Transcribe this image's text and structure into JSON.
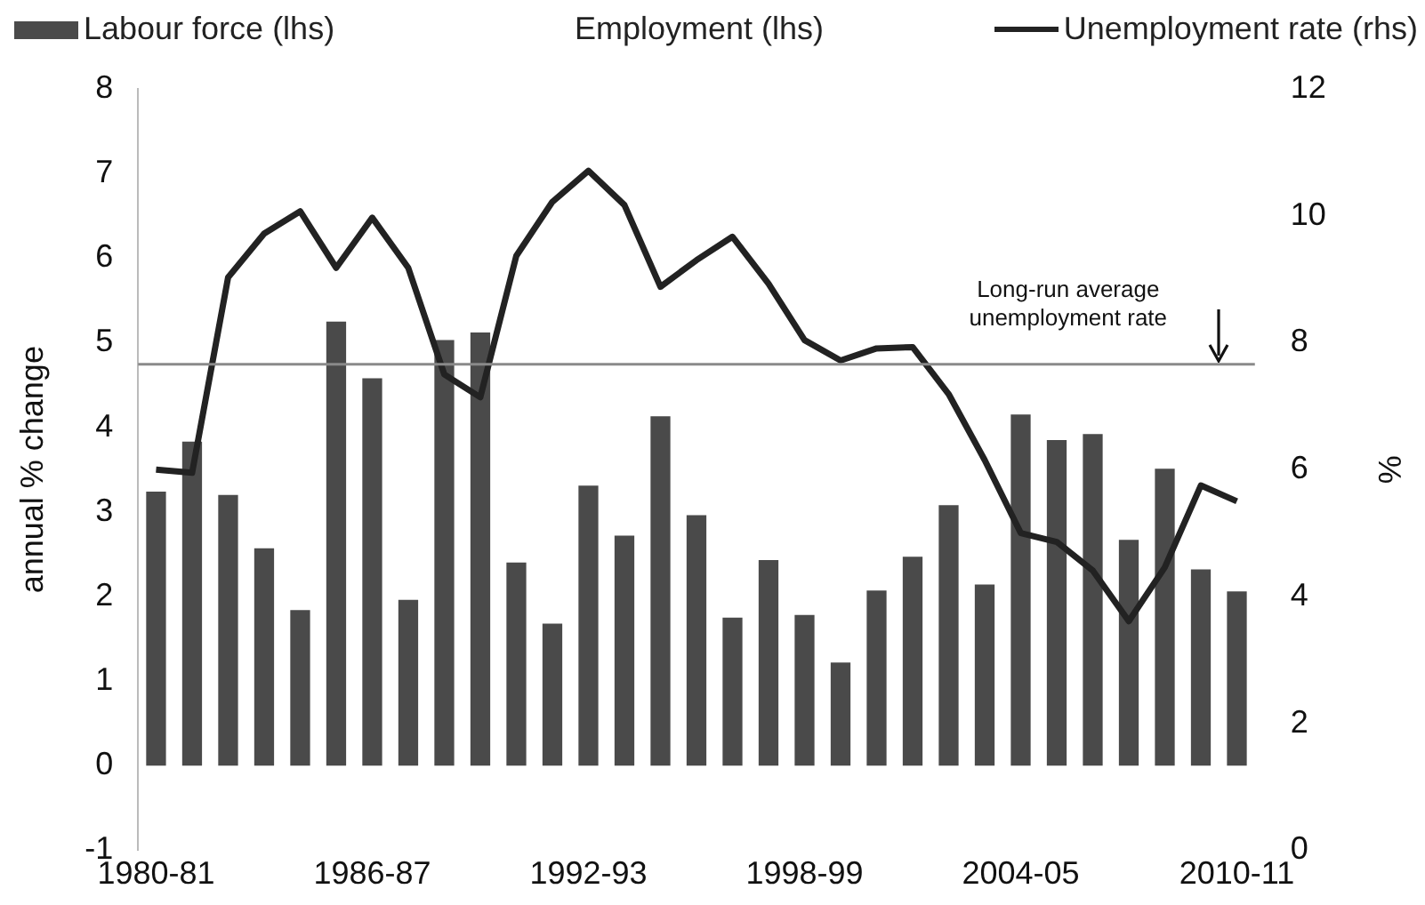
{
  "chart_data": {
    "type": "bar",
    "ylabel": "annual % change",
    "y2label": "%",
    "categories": [
      "1980-81",
      null,
      null,
      null,
      null,
      null,
      "1986-87",
      null,
      null,
      null,
      null,
      null,
      "1992-93",
      null,
      null,
      null,
      null,
      null,
      "1998-99",
      null,
      null,
      null,
      null,
      null,
      "2004-05",
      null,
      null,
      null,
      null,
      null,
      "2010-11"
    ],
    "series": [
      {
        "name": "Labour force (lhs)",
        "color": "#4a4a4a",
        "values": [
          3.24,
          3.83,
          3.2,
          2.57,
          1.84,
          5.25,
          4.58,
          1.96,
          5.03,
          5.12,
          2.4,
          1.68,
          3.31,
          2.72,
          4.13,
          2.96,
          1.75,
          2.43,
          1.78,
          1.22,
          2.07,
          2.47,
          3.08,
          2.14,
          4.15,
          3.85,
          3.92,
          2.67,
          3.51,
          2.32,
          2.06
        ]
      },
      {
        "name": "Employment (lhs)",
        "values": [
          null,
          null,
          null,
          null,
          null,
          null,
          null,
          null,
          null,
          null,
          null,
          null,
          null,
          null,
          null,
          null,
          null,
          null,
          null,
          null,
          null,
          null,
          null,
          null,
          null,
          null,
          null,
          null,
          null,
          null,
          null
        ]
      },
      {
        "name": "Unemployment rate (rhs)",
        "type": "line",
        "axis": "y2",
        "color": "#222222",
        "values": [
          6.0,
          5.95,
          9.03,
          9.72,
          10.07,
          9.18,
          9.97,
          9.18,
          7.5,
          7.14,
          9.37,
          10.22,
          10.71,
          10.17,
          8.88,
          9.3,
          9.67,
          8.93,
          8.04,
          7.72,
          7.91,
          7.93,
          7.19,
          6.15,
          5.0,
          4.86,
          4.41,
          3.61,
          4.46,
          5.75,
          5.5
        ]
      }
    ],
    "ylim": [
      -1,
      8
    ],
    "yticks": [
      -1,
      0,
      1,
      2,
      3,
      4,
      5,
      6,
      7,
      8
    ],
    "y2lim": [
      0,
      12
    ],
    "y2ticks": [
      0,
      2,
      4,
      6,
      8,
      10,
      12
    ],
    "ref_lines": [
      {
        "axis": "y2",
        "value": 7.66,
        "label": "Long-run average unemployment rate",
        "color": "#8a8a8a"
      }
    ],
    "grid": false,
    "legend": "top",
    "marker": "none",
    "line_style": "solid"
  }
}
